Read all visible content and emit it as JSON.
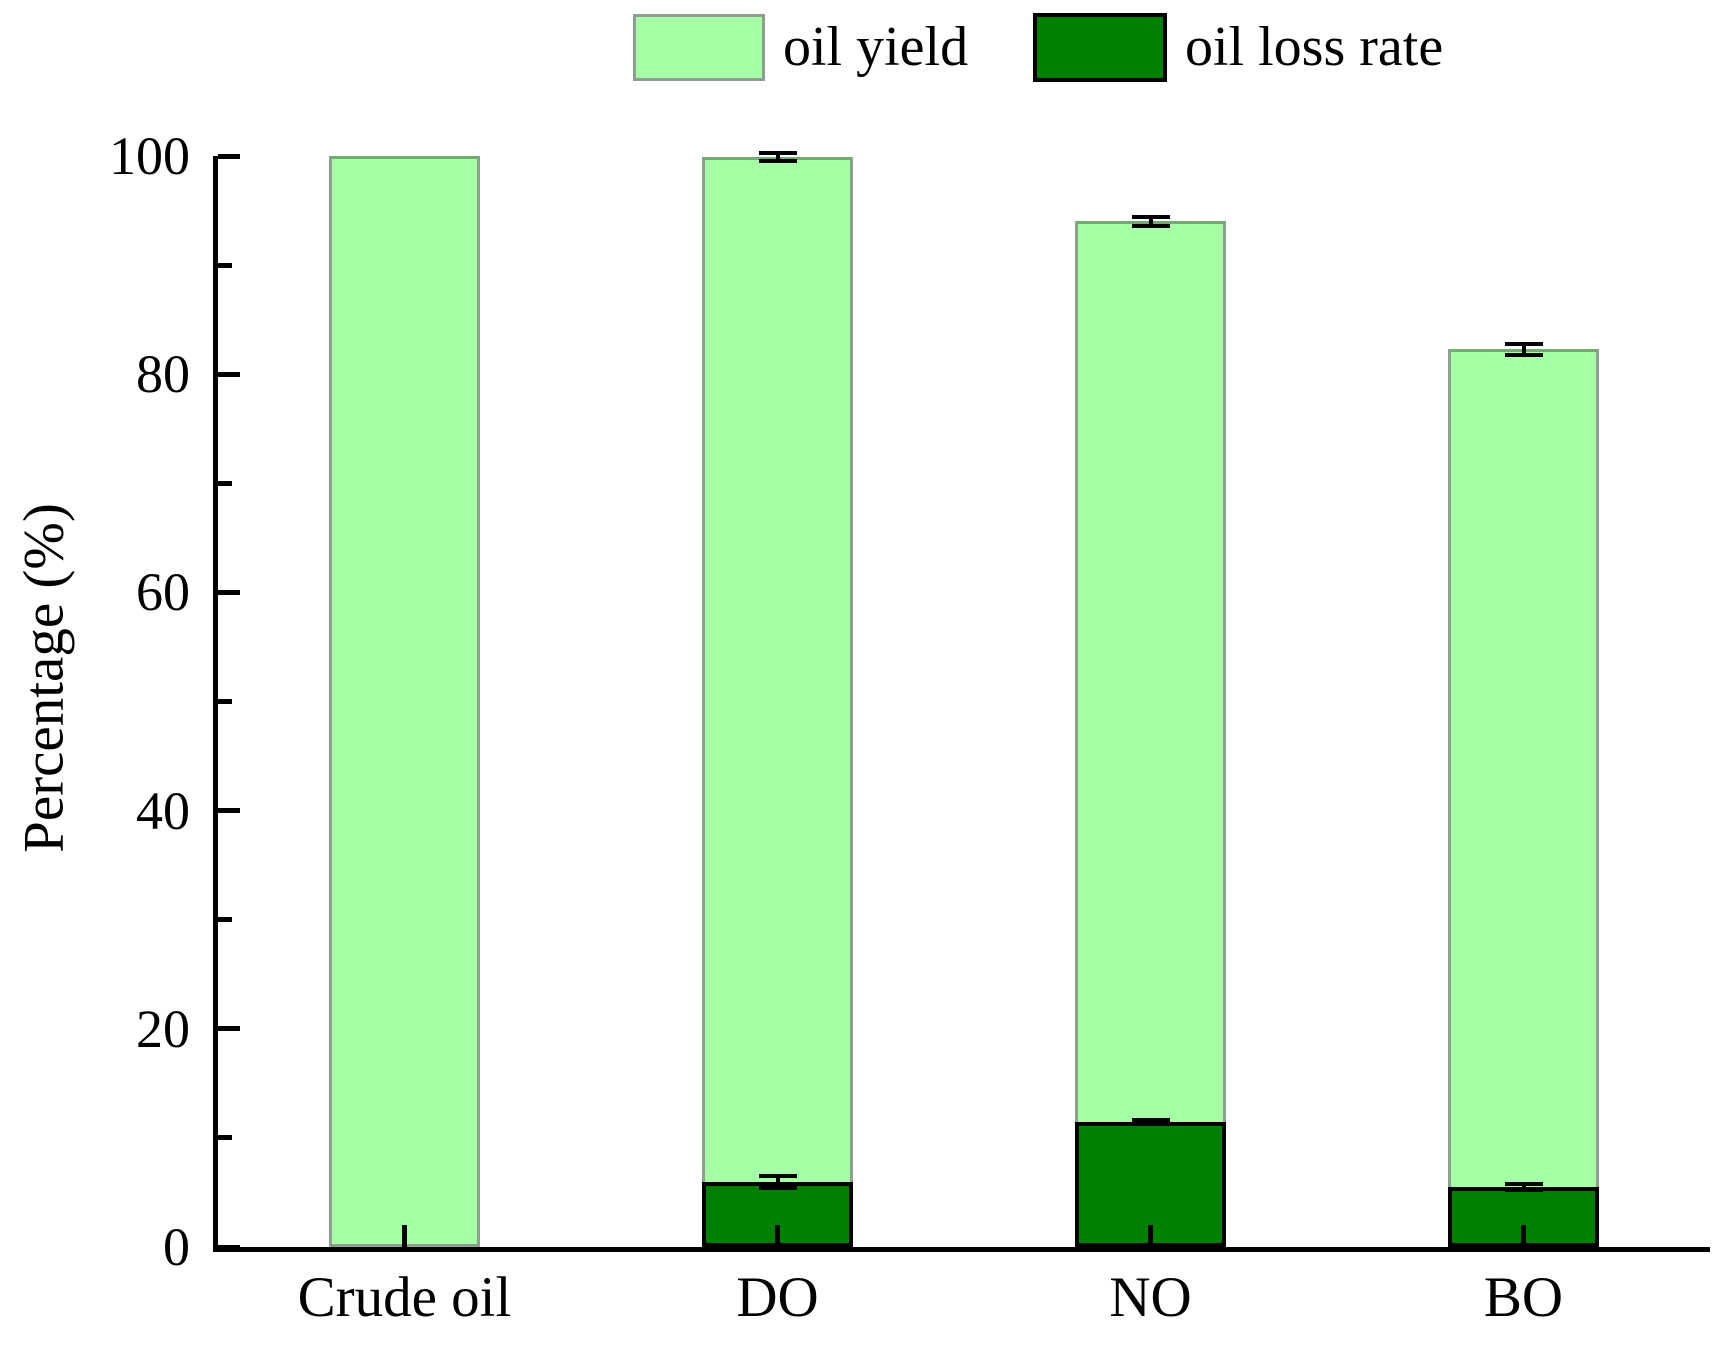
{
  "legend": {
    "items": [
      {
        "label": "oil yield",
        "color": "#a5ffa5",
        "edge_color": "#8f9f8f"
      },
      {
        "label": "oil loss rate",
        "color": "#008000",
        "edge_color": "#000000"
      }
    ]
  },
  "chart_data": {
    "type": "bar",
    "title": "",
    "xlabel": "",
    "ylabel": "Percentage (%)",
    "categories": [
      "Crude oil",
      "DO",
      "NO",
      "BO"
    ],
    "series": [
      {
        "name": "oil yield",
        "color": "#a5ffa5",
        "edge_color": "#8f9f8f",
        "values": [
          100,
          99.9,
          94.0,
          82.3
        ],
        "errors": [
          null,
          0.4,
          0.4,
          0.5
        ]
      },
      {
        "name": "oil loss rate",
        "color": "#008000",
        "edge_color": "#000000",
        "values": [
          null,
          6.0,
          11.5,
          5.5
        ],
        "errors": [
          null,
          0.55,
          0.15,
          0.3
        ]
      }
    ],
    "ylim": [
      0,
      100
    ],
    "yticks_major": [
      0,
      20,
      40,
      60,
      80,
      100
    ],
    "yticks_minor": [
      10,
      30,
      50,
      70,
      90
    ],
    "grid": false,
    "legend_position": "top",
    "error_bars": true,
    "bar_style": "grouped-overlay, ticks inward, open frame (left and bottom axes only)"
  }
}
